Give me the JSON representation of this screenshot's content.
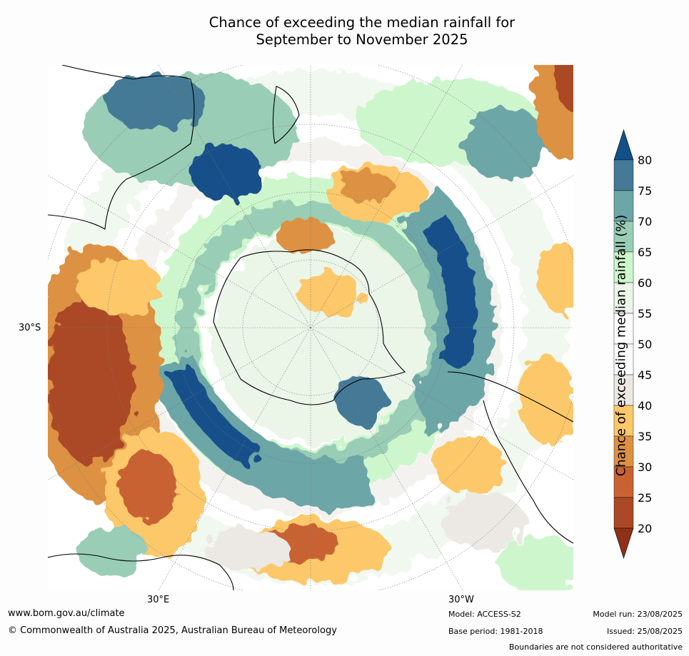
{
  "title_line1": "Chance of exceeding the median rainfall for",
  "title_line2": "September to November 2025",
  "graticule_labels": {
    "lat": "30°S",
    "lon_east": "30°E",
    "lon_west": "30°W"
  },
  "colorbar": {
    "label": "Chance of exceeding median rainfall (%)",
    "ticks": [
      "20",
      "25",
      "30",
      "35",
      "40",
      "45",
      "50",
      "55",
      "60",
      "65",
      "70",
      "75",
      "80"
    ],
    "bins": [
      {
        "range": "<20",
        "color": "#8f3019"
      },
      {
        "range": "20-25",
        "color": "#ab4825"
      },
      {
        "range": "25-30",
        "color": "#c96233"
      },
      {
        "range": "30-35",
        "color": "#dd9143"
      },
      {
        "range": "35-40",
        "color": "#fcc86a"
      },
      {
        "range": "40-45",
        "color": "#ece9e4"
      },
      {
        "range": "45-50",
        "color": "#ffffff"
      },
      {
        "range": "50-55",
        "color": "#ffffff"
      },
      {
        "range": "55-60",
        "color": "#ebf5e8"
      },
      {
        "range": "60-65",
        "color": "#cdf6cd"
      },
      {
        "range": "65-70",
        "color": "#99cdb6"
      },
      {
        "range": "70-75",
        "color": "#6ca6a7"
      },
      {
        "range": "75-80",
        "color": "#447a96"
      },
      {
        "range": ">80",
        "color": "#12508a"
      }
    ]
  },
  "footer": {
    "url": "www.bom.gov.au/climate",
    "copyright": "© Commonwealth of Australia 2025, Australian Bureau of Meteorology",
    "model": "Model: ACCESS-S2",
    "base_period": "Base period: 1981-2018",
    "model_run": "Model run: 23/08/2025",
    "issued": "Issued: 25/08/2025",
    "disclaimer": "Boundaries are not considered authoritative"
  }
}
